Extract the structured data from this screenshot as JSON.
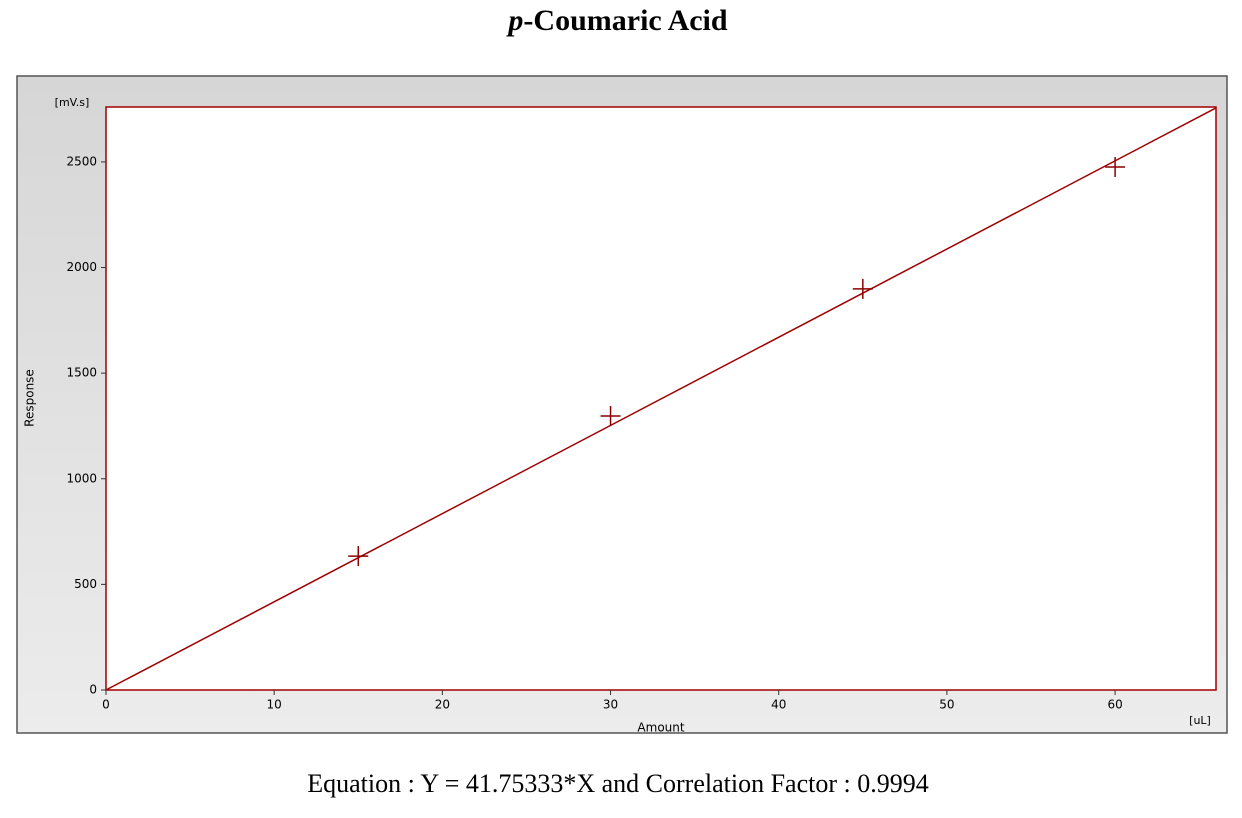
{
  "chart_data": {
    "type": "scatter",
    "title": "p-Coumaric Acid",
    "x_label": "Amount",
    "y_label": "Response",
    "x_unit": "[uL]",
    "y_unit": "[mV.s]",
    "x": [
      15,
      30,
      45,
      60
    ],
    "values": [
      634,
      1297,
      1899,
      2476
    ],
    "color": "#8b0000",
    "fit": {
      "slope": 41.75333,
      "color": "#a00000"
    },
    "xlim": [
      0,
      66
    ],
    "ylim": [
      0,
      2760
    ],
    "xticks": [
      0,
      10,
      20,
      30,
      40,
      50,
      60
    ],
    "yticks": [
      0,
      500,
      1000,
      1500,
      2000,
      2500
    ],
    "footnote": "Equation : Y = 41.75333*X and Correlation Factor : 0.9994"
  }
}
